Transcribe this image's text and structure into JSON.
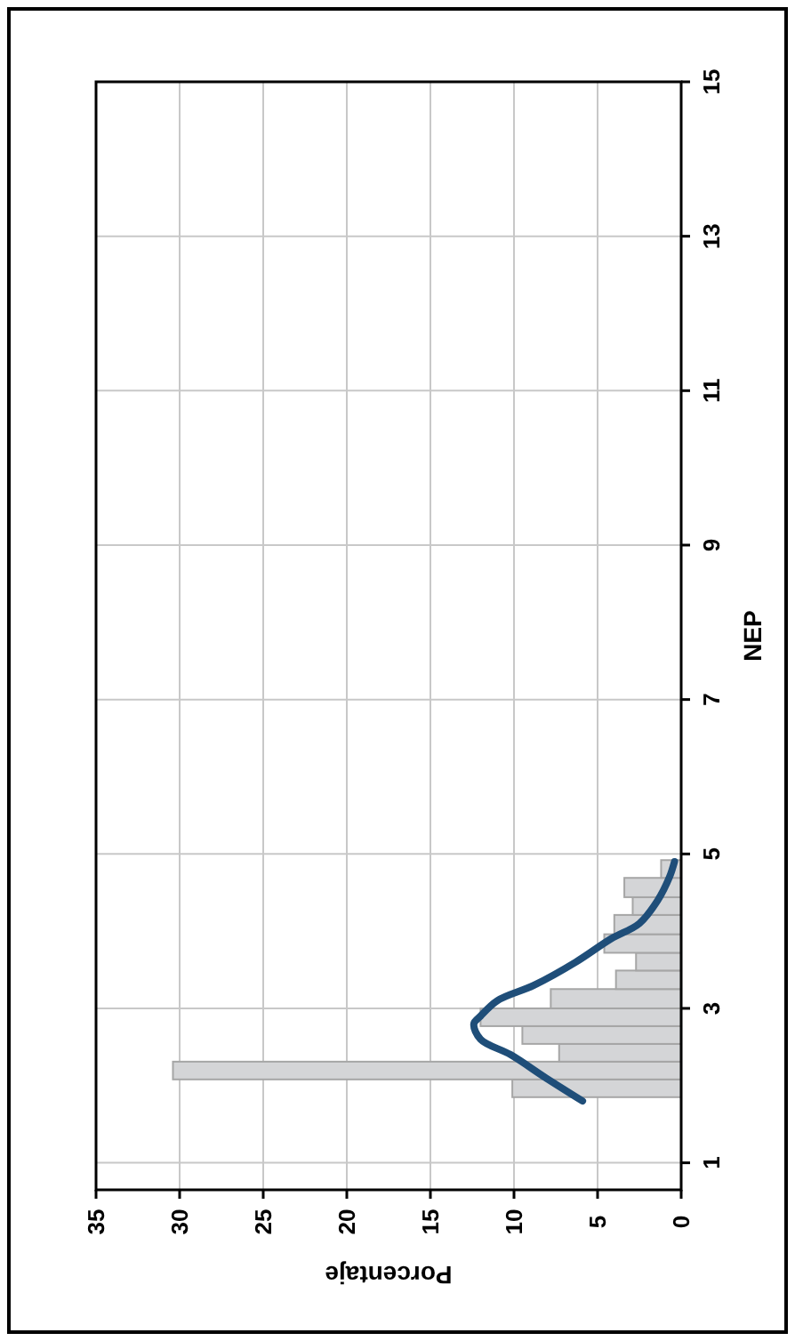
{
  "chart_data": {
    "type": "histogram",
    "orientation": "horizontal",
    "xlabel": "Porcentaje",
    "ylabel": "NEP",
    "xlim": [
      35,
      0
    ],
    "xticks": [
      35,
      30,
      25,
      20,
      15,
      10,
      5,
      0
    ],
    "ylim": [
      0.65,
      15
    ],
    "yticks": [
      1,
      3,
      5,
      7,
      9,
      11,
      13,
      15
    ],
    "grid": true,
    "series": [
      {
        "color": "#d4d5d7",
        "bins": [
          1.85,
          2.08,
          2.31,
          2.54,
          2.77,
          3.0,
          3.25,
          3.49,
          3.72,
          3.96,
          4.21,
          4.44,
          4.69,
          4.92
        ],
        "values": [
          10.1,
          30.4,
          7.3,
          9.5,
          12.0,
          7.8,
          3.9,
          2.7,
          4.6,
          4.0,
          2.9,
          3.4,
          1.2
        ]
      },
      {
        "type": "line",
        "color": "#1f4e79",
        "x": [
          1.8,
          2.1,
          2.4,
          2.6,
          2.8,
          2.9,
          3.1,
          3.3,
          3.6,
          3.9,
          4.1,
          4.4,
          4.7,
          4.9
        ],
        "values": [
          5.9,
          8.1,
          10.2,
          12.0,
          12.4,
          12.0,
          11.0,
          8.8,
          6.3,
          4.2,
          2.5,
          1.4,
          0.7,
          0.4
        ]
      }
    ]
  }
}
